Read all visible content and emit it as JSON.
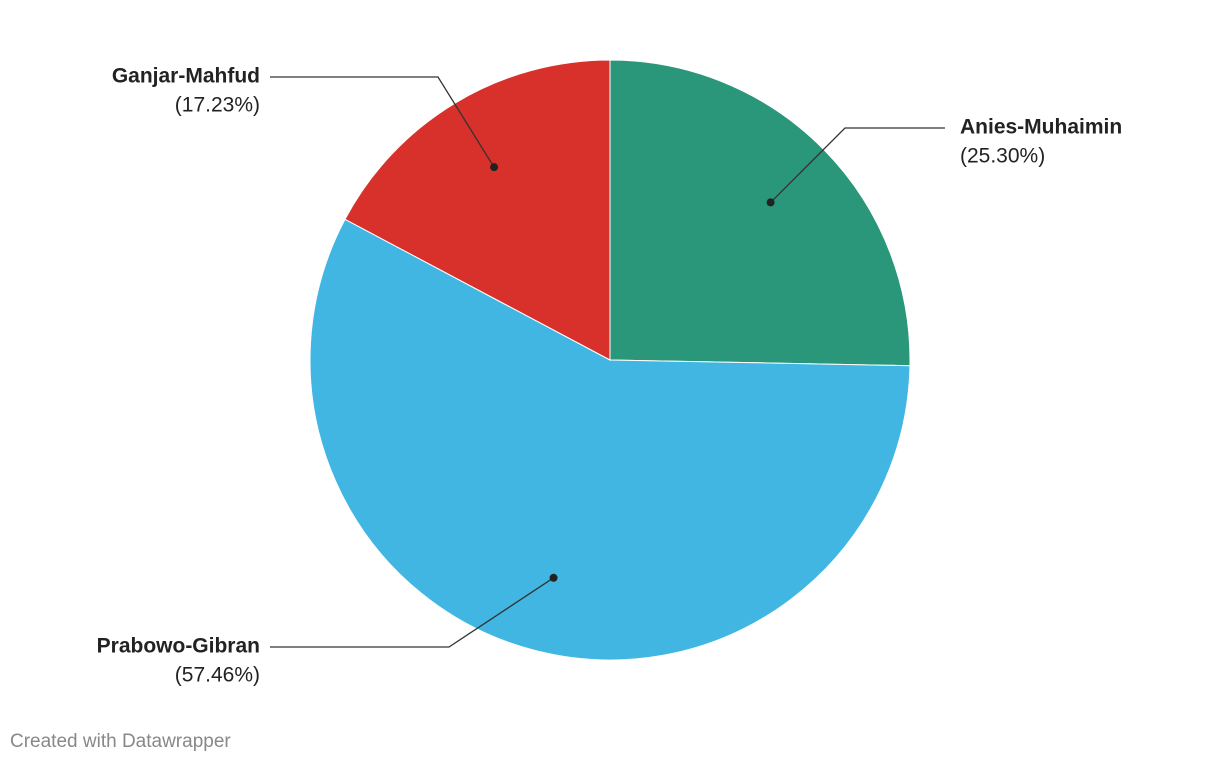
{
  "chart_data": {
    "type": "pie",
    "categories": [
      "Anies-Muhaimin",
      "Prabowo-Gibran",
      "Ganjar-Mahfud"
    ],
    "values": [
      25.3,
      57.46,
      17.23
    ],
    "value_labels": [
      "(25.30%)",
      "(57.46%)",
      "(17.23%)"
    ],
    "colors": [
      "#2a967a",
      "#41b6e2",
      "#d8302b"
    ],
    "credit": "Created with Datawrapper"
  }
}
